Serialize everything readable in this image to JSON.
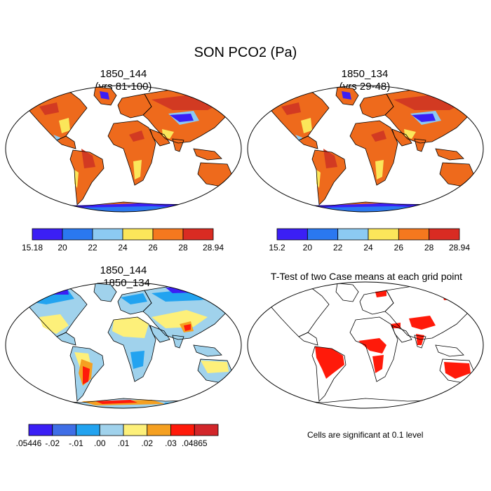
{
  "title": "SON PCO2 (Pa)",
  "panels": [
    {
      "id": "case1",
      "title_line1": "1850_144",
      "title_line2": "(yrs 81-100)"
    },
    {
      "id": "case2",
      "title_line1": "1850_134",
      "title_line2": "(yrs 29-48)"
    },
    {
      "id": "diff",
      "title_line1": "1850_144",
      "title_line2": "- 1850_134"
    },
    {
      "id": "ttest",
      "title_line1": "T-Test of two Case means at each grid point",
      "title_line2": ""
    }
  ],
  "ttest_note": "Cells are significant at 0.1 level",
  "colorbars": [
    {
      "id": "cb1",
      "colors": [
        "#3b1ff5",
        "#2a78f0",
        "#8ccaf2",
        "#fbe65a",
        "#f5781e",
        "#d92b22"
      ],
      "labels": [
        "15.18",
        "20",
        "22",
        "24",
        "26",
        "28",
        "28.94"
      ]
    },
    {
      "id": "cb2",
      "colors": [
        "#3b1ff5",
        "#2a78f0",
        "#8ccaf2",
        "#fbe65a",
        "#f5781e",
        "#d92b22"
      ],
      "labels": [
        "15.2",
        "20",
        "22",
        "24",
        "26",
        "28",
        "28.94"
      ]
    },
    {
      "id": "cb3",
      "colors": [
        "#3b1ff5",
        "#3f6ee6",
        "#22a3f0",
        "#a0d2ec",
        "#fdf07a",
        "#f5a021",
        "#ff1a0a",
        "#d2262a"
      ],
      "labels": [
        ".05446",
        "-.02",
        "-.01",
        ".00",
        ".01",
        ".02",
        ".03",
        ".04865"
      ]
    }
  ]
}
